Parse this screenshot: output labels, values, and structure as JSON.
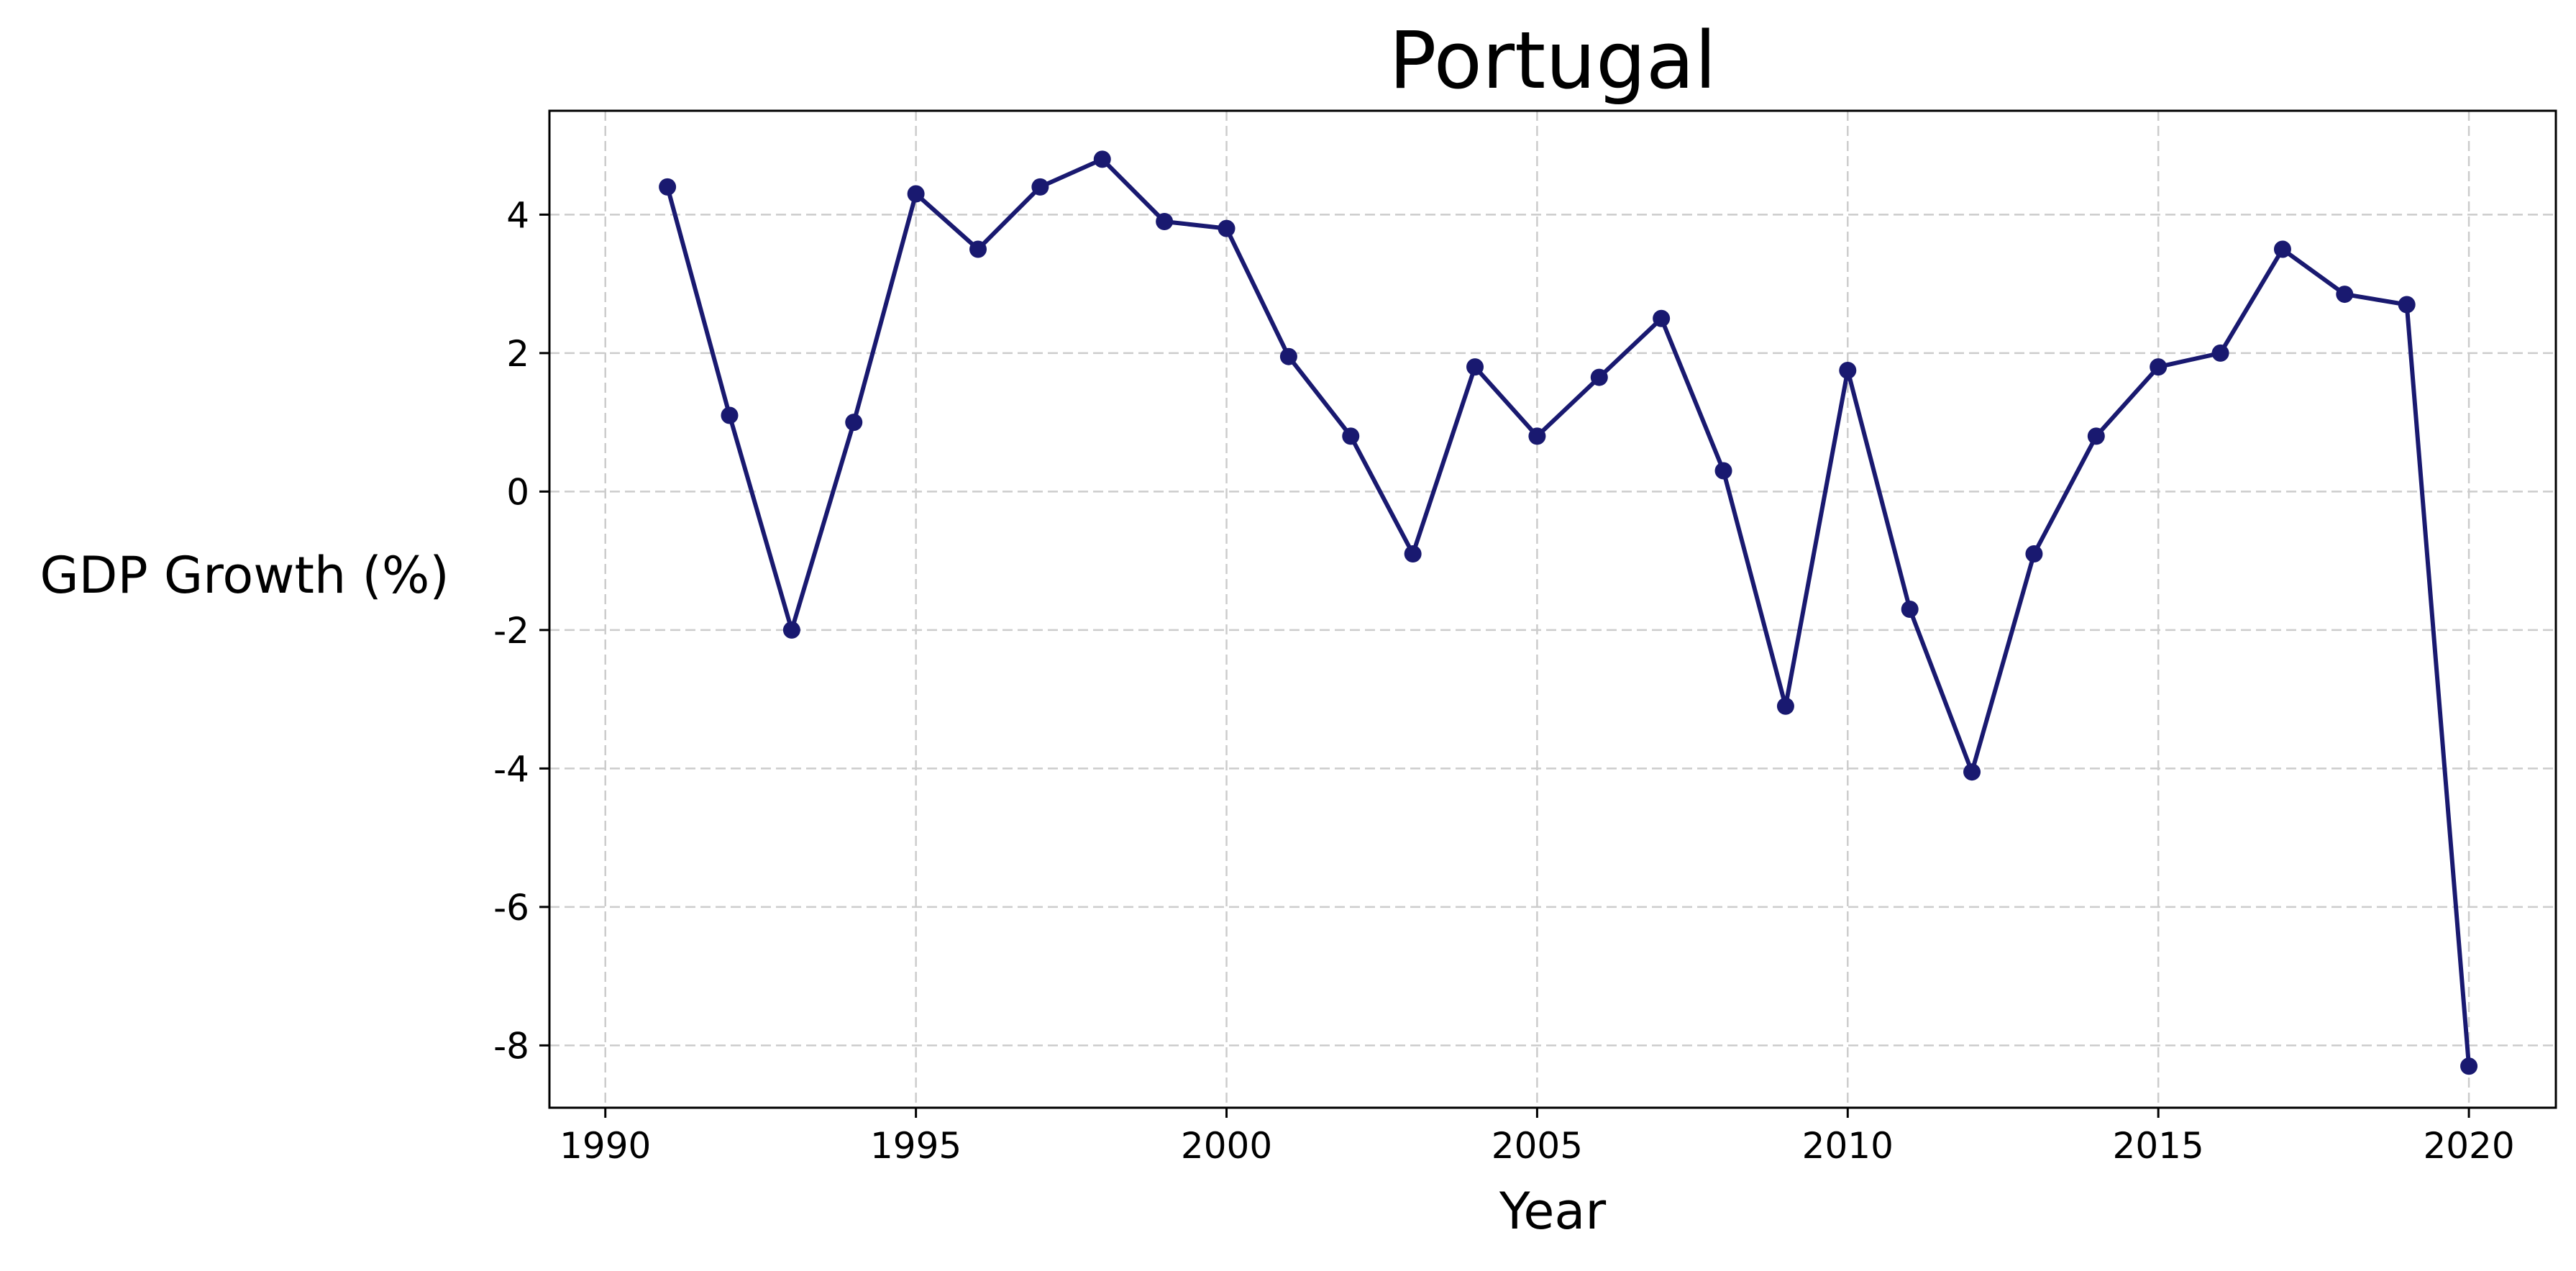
{
  "chart_data": {
    "type": "line",
    "title": "Portugal",
    "xlabel": "Year",
    "ylabel": "GDP Growth (%)",
    "xlim": [
      1989.1,
      2021.4
    ],
    "ylim": [
      -8.9,
      5.5
    ],
    "xticks": [
      1990,
      1995,
      2000,
      2005,
      2010,
      2015,
      2020
    ],
    "yticks": [
      -8,
      -6,
      -4,
      -2,
      0,
      2,
      4
    ],
    "grid": true,
    "line_color": "#191970",
    "series": [
      {
        "x": [
          1991,
          1992,
          1993,
          1994,
          1995,
          1996,
          1997,
          1998,
          1999,
          2000,
          2001,
          2002,
          2003,
          2004,
          2005,
          2006,
          2007,
          2008,
          2009,
          2010,
          2011,
          2012,
          2013,
          2014,
          2015,
          2016,
          2017,
          2018,
          2019,
          2020
        ],
        "values": [
          4.4,
          1.1,
          -2.0,
          1.0,
          4.3,
          3.5,
          4.4,
          4.8,
          3.9,
          3.8,
          1.95,
          0.8,
          -0.9,
          1.8,
          0.8,
          1.65,
          2.5,
          0.3,
          -3.1,
          1.75,
          -1.7,
          -4.05,
          -0.9,
          0.8,
          1.8,
          2.0,
          3.5,
          2.85,
          2.7,
          -8.3
        ]
      }
    ]
  }
}
